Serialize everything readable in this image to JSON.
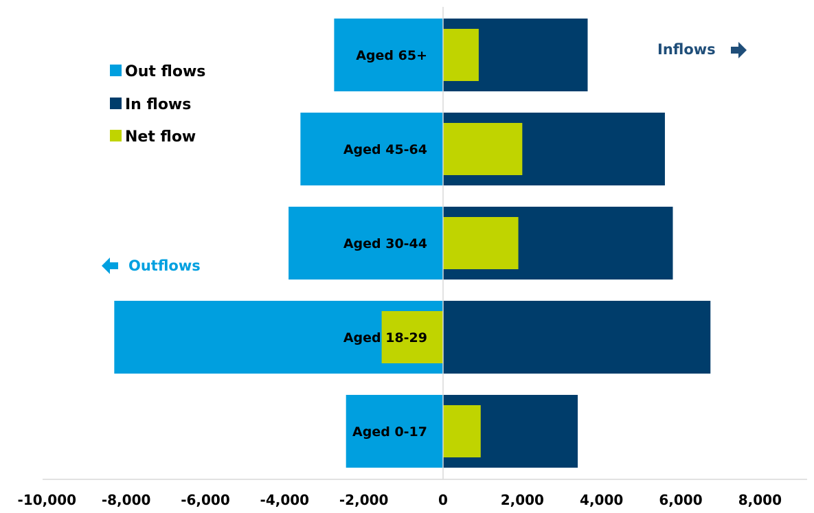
{
  "chart_data": {
    "type": "bar",
    "orientation": "horizontal",
    "categories": [
      "Aged 65+",
      "Aged 45-64",
      "Aged 30-44",
      "Aged 18-29",
      "Aged 0-17"
    ],
    "series": [
      {
        "name": "Out flows",
        "color": "#009FDF",
        "values": [
          -2750,
          -3600,
          -3900,
          -8300,
          -2450
        ]
      },
      {
        "name": "In flows",
        "color": "#003D6B",
        "values": [
          3650,
          5600,
          5800,
          6750,
          3400
        ]
      },
      {
        "name": "Net flow",
        "color": "#C0D400",
        "values": [
          900,
          2000,
          1900,
          -1550,
          950
        ]
      }
    ],
    "xlim": [
      -10000,
      8000
    ],
    "x_ticks": [
      -10000,
      -8000,
      -6000,
      -4000,
      -2000,
      0,
      2000,
      4000,
      6000,
      8000
    ],
    "x_tick_labels": [
      "-10,000",
      "-8,000",
      "-6,000",
      "-4,000",
      "-2,000",
      "0",
      "2,000",
      "4,000",
      "6,000",
      "8,000"
    ],
    "legend_position": "top-left",
    "grid": false,
    "annotations": {
      "inflows": "Inflows",
      "outflows": "Outflows",
      "inflows_color": "#1F4E79",
      "outflows_color": "#00A0E0"
    }
  }
}
